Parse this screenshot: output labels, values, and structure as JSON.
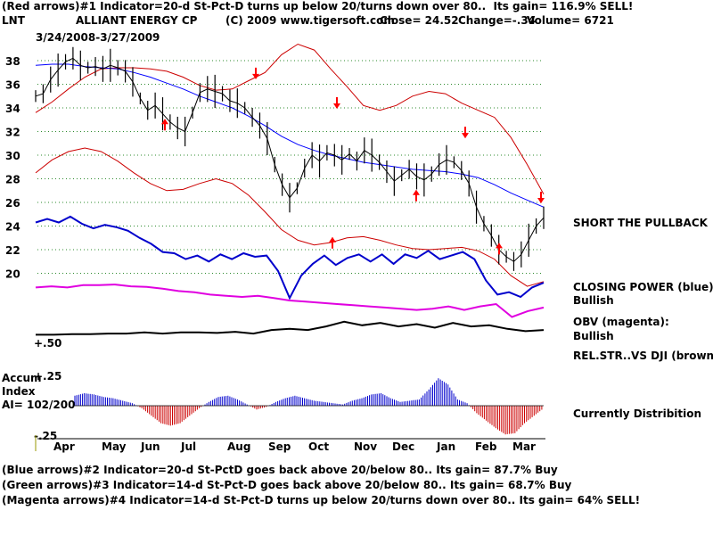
{
  "header": {
    "line1": "(Red arrows)#1 Indicator=20-d St-Pct-D turns up below 20/turns down over 80..  Its gain= 116.9% SELL!",
    "symbol": "LNT",
    "company": "ALLIANT ENERGY CP",
    "copyright": "(C) 2009 www.tigersoft.com",
    "close": "Close=  24.52",
    "change": "Change=-.34",
    "volume": "Volume=  6721",
    "date_range": "3/24/2008-3/27/2009"
  },
  "footer": {
    "line2": "(Blue arrows)#2 Indicator=20-d St-PctD goes back above 20/below 80..  Its gain= 87.7% Buy",
    "line3": "(Green arrows)#3 Indicator=14-d St-Pct-D goes back above 20/below 80..  Its gain= 68.7% Buy",
    "line4": "(Magenta arrows)#4 Indicator=14-d St-Pct-D turns up below 20/turns down over 80..  Its gain= 64% SELL!"
  },
  "annotations": {
    "short": "SHORT THE PULLBACK",
    "cp_label": "CLOSING POWER (blue):",
    "cp_value": "Bullish",
    "obv_label": "OBV (magenta):",
    "obv_value": "Bullish",
    "rel_label": "REL.STR..VS DJI (brown):",
    "distribution": "Currently Distribition"
  },
  "accum": {
    "label1": "Accum",
    "label2": "Index",
    "value": "AI= 102/200",
    "top_tick": "+.25",
    "bottom_tick": "-.25"
  },
  "rel_tick": "+.50",
  "colors": {
    "price": "#000000",
    "bands": "#cc0000",
    "ma": "#0000ff",
    "closing_power": "#0000cc",
    "obv": "#e000e0",
    "rel_str": "#000000",
    "grid": "#2e8b2e",
    "arrow_red": "#ff0000",
    "hist_pos": "#0000cc",
    "hist_neg": "#cc0000"
  },
  "chart_data": {
    "type": "line",
    "xlabel": "",
    "ylabel": "",
    "ylim": [
      18.6,
      39.4
    ],
    "y_ticks": [
      20,
      22,
      24,
      26,
      28,
      30,
      32,
      34,
      36,
      38
    ],
    "months": [
      "Apr",
      "May",
      "Jun",
      "Jul",
      "Aug",
      "Sep",
      "Oct",
      "Nov",
      "Dec",
      "Jan",
      "Feb",
      "Mar"
    ],
    "price": [
      35.0,
      35.2,
      36.4,
      37.2,
      37.9,
      38.2,
      37.6,
      37.4,
      37.5,
      37.3,
      37.6,
      37.4,
      37.1,
      36.2,
      34.8,
      33.8,
      34.2,
      33.5,
      32.8,
      32.3,
      32.0,
      33.6,
      35.3,
      35.6,
      35.4,
      35.2,
      34.6,
      34.4,
      34.0,
      33.2,
      32.5,
      31.4,
      29.2,
      27.5,
      26.4,
      27.2,
      28.9,
      30.0,
      29.5,
      30.2,
      30.0,
      29.6,
      30.1,
      29.5,
      30.4,
      30.0,
      29.4,
      28.6,
      27.8,
      28.3,
      28.8,
      28.2,
      27.9,
      28.4,
      29.2,
      29.6,
      29.4,
      28.7,
      27.6,
      25.6,
      24.2,
      23.2,
      22.0,
      21.4,
      21.0,
      21.6,
      22.8,
      24.0,
      24.7
    ],
    "upper_band": [
      33.6,
      34.5,
      35.6,
      36.6,
      37.3,
      37.4,
      37.4,
      37.3,
      37.1,
      36.6,
      35.9,
      35.5,
      35.6,
      36.3,
      37.0,
      38.5,
      39.4,
      38.9,
      37.3,
      35.8,
      34.2,
      33.8,
      34.2,
      35.0,
      35.4,
      35.2,
      34.4,
      33.8,
      33.2,
      31.5,
      29.2,
      26.7
    ],
    "lower_band": [
      28.5,
      29.6,
      30.3,
      30.6,
      30.3,
      29.5,
      28.5,
      27.6,
      27.0,
      27.1,
      27.6,
      28.0,
      27.6,
      26.6,
      25.2,
      23.7,
      22.8,
      22.4,
      22.6,
      23.0,
      23.1,
      22.8,
      22.4,
      22.1,
      22.0,
      22.1,
      22.2,
      21.9,
      21.2,
      19.8,
      18.9,
      19.3
    ],
    "ma": [
      37.6,
      37.7,
      37.7,
      37.5,
      37.4,
      37.3,
      37.0,
      36.6,
      36.1,
      35.6,
      35.0,
      34.5,
      34.0,
      33.3,
      32.5,
      31.6,
      30.9,
      30.4,
      30.0,
      29.7,
      29.4,
      29.2,
      29.0,
      28.8,
      28.7,
      28.6,
      28.4,
      28.1,
      27.5,
      26.8,
      26.2,
      25.6
    ],
    "closing_power": [
      24.3,
      24.6,
      24.3,
      24.8,
      24.2,
      23.8,
      24.1,
      23.9,
      23.6,
      23.0,
      22.5,
      21.8,
      21.7,
      21.2,
      21.5,
      21.0,
      21.6,
      21.2,
      21.7,
      21.4,
      21.5,
      20.2,
      17.9,
      19.8,
      20.8,
      21.5,
      20.7,
      21.3,
      21.6,
      21.0,
      21.6,
      20.8,
      21.6,
      21.3,
      21.9,
      21.2,
      21.5,
      21.8,
      21.2,
      19.4,
      18.2,
      18.4,
      18.0,
      18.8,
      19.2
    ],
    "obv": [
      18.8,
      18.9,
      18.8,
      19.0,
      19.0,
      19.05,
      18.9,
      18.85,
      18.7,
      18.5,
      18.4,
      18.2,
      18.1,
      18.0,
      18.1,
      17.9,
      17.7,
      17.6,
      17.5,
      17.4,
      17.3,
      17.2,
      17.1,
      17.0,
      16.9,
      17.0,
      17.2,
      16.9,
      17.2,
      17.4,
      16.3,
      16.8,
      17.1
    ],
    "rel_str": [
      14.8,
      14.8,
      14.85,
      14.85,
      14.9,
      14.9,
      15.0,
      14.9,
      15.0,
      15.0,
      14.95,
      15.05,
      14.9,
      15.2,
      15.3,
      15.2,
      15.5,
      15.9,
      15.6,
      15.8,
      15.5,
      15.7,
      15.4,
      15.8,
      15.5,
      15.6,
      15.3,
      15.1,
      15.2
    ],
    "accum_index": [
      0.08,
      0.1,
      0.09,
      0.07,
      0.06,
      0.04,
      0.02,
      -0.02,
      -0.08,
      -0.14,
      -0.16,
      -0.14,
      -0.08,
      -0.02,
      0.03,
      0.07,
      0.08,
      0.05,
      0.01,
      -0.03,
      -0.01,
      0.03,
      0.06,
      0.08,
      0.06,
      0.04,
      0.03,
      0.02,
      0.01,
      0.04,
      0.06,
      0.09,
      0.1,
      0.06,
      0.03,
      0.04,
      0.05,
      0.13,
      0.22,
      0.17,
      0.05,
      0.02,
      -0.06,
      -0.12,
      -0.18,
      -0.23,
      -0.22,
      -0.14,
      -0.08,
      -0.02
    ],
    "red_arrows_up": [
      {
        "month": "Jun",
        "price": 33
      },
      {
        "month": "Oct",
        "price": 23
      },
      {
        "month": "Dec",
        "price": 27
      },
      {
        "month": "Feb",
        "price": 22.5
      }
    ],
    "red_arrows_down": [
      {
        "month": "Aug",
        "price": 36.5
      },
      {
        "month": "Oct",
        "price": 34
      },
      {
        "month": "Jan",
        "price": 31.5
      },
      {
        "month": "Mar",
        "price": 26
      }
    ]
  }
}
